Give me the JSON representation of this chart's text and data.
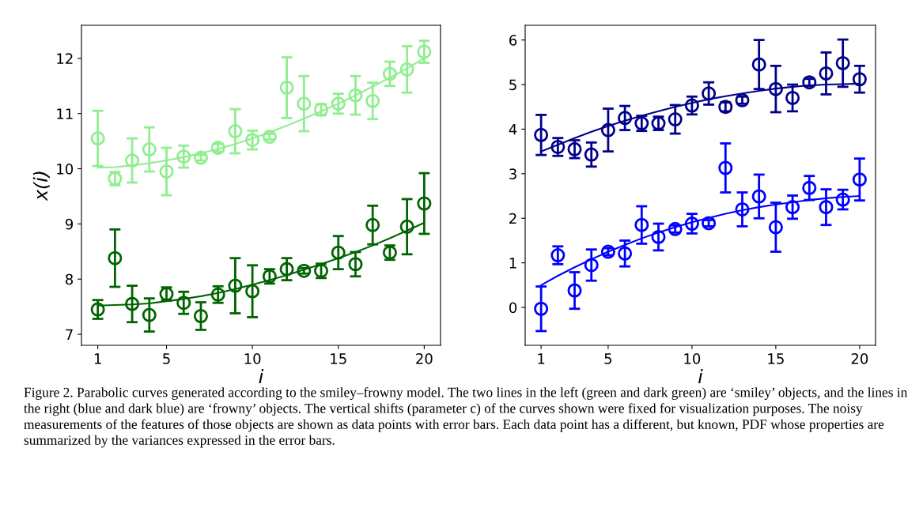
{
  "chart_data": [
    {
      "type": "scatter",
      "xlabel": "i",
      "ylabel": "x(i)",
      "xlim": [
        0.05,
        20.95
      ],
      "ylim": [
        6.8,
        12.6
      ],
      "xticks": [
        1,
        5,
        10,
        15,
        20
      ],
      "yticks": [
        7,
        8,
        9,
        10,
        11,
        12
      ],
      "grid": false,
      "marker": "circle",
      "x": [
        1,
        2,
        3,
        4,
        5,
        6,
        7,
        8,
        9,
        10,
        11,
        12,
        13,
        14,
        15,
        16,
        17,
        18,
        19,
        20
      ],
      "series": [
        {
          "color": "#90ee90",
          "values": [
            10.55,
            9.82,
            10.15,
            10.35,
            9.95,
            10.22,
            10.2,
            10.38,
            10.68,
            10.52,
            10.58,
            11.47,
            11.18,
            11.07,
            11.18,
            11.33,
            11.23,
            11.72,
            11.8,
            12.12
          ],
          "errors": [
            0.5,
            0.12,
            0.4,
            0.4,
            0.43,
            0.2,
            0.05,
            0.07,
            0.4,
            0.17,
            0.05,
            0.55,
            0.5,
            0.1,
            0.18,
            0.35,
            0.33,
            0.22,
            0.42,
            0.2
          ]
        },
        {
          "type": "line",
          "marker": "none",
          "color": "#90ee90",
          "values": [
            10.02,
            10.03,
            10.06,
            10.1,
            10.15,
            10.21,
            10.28,
            10.36,
            10.45,
            10.55,
            10.66,
            10.78,
            10.91,
            11.04,
            11.18,
            11.33,
            11.49,
            11.65,
            11.82,
            12.0
          ]
        },
        {
          "color": "#006400",
          "values": [
            7.45,
            8.38,
            7.55,
            7.35,
            7.73,
            7.57,
            7.33,
            7.72,
            7.88,
            7.78,
            8.05,
            8.18,
            8.15,
            8.15,
            8.48,
            8.27,
            8.98,
            8.48,
            8.95,
            9.37
          ],
          "errors": [
            0.17,
            0.52,
            0.33,
            0.3,
            0.12,
            0.2,
            0.25,
            0.15,
            0.5,
            0.47,
            0.13,
            0.2,
            0.05,
            0.13,
            0.3,
            0.22,
            0.35,
            0.13,
            0.5,
            0.55
          ]
        },
        {
          "type": "line",
          "marker": "none",
          "color": "#006400",
          "values": [
            7.52,
            7.53,
            7.54,
            7.56,
            7.6,
            7.64,
            7.69,
            7.75,
            7.82,
            7.9,
            7.98,
            8.07,
            8.17,
            8.27,
            8.38,
            8.49,
            8.61,
            8.74,
            8.88,
            9.02
          ]
        }
      ],
      "annotations": [
        "Figure 2. Parabolic curves generated according to the smiley–frowny model. The two lines in the left (green and dark green) are ‘smiley’ objects, and the lines in the right (blue and dark blue) are ‘frowny’ objects. The vertical shifts (parameter c) of the curves shown were fixed for visualization purposes. The noisy measurements of the features of those objects are shown as data points with error bars. Each data point has a different, but known, PDF whose properties are summarized by the variances expressed in the error bars."
      ]
    },
    {
      "type": "scatter",
      "xlabel": "i",
      "xlim": [
        0.05,
        20.95
      ],
      "ylim": [
        -0.85,
        6.33
      ],
      "xticks": [
        1,
        5,
        10,
        15,
        20
      ],
      "yticks": [
        0,
        1,
        2,
        3,
        4,
        5,
        6
      ],
      "grid": false,
      "marker": "circle",
      "x": [
        1,
        2,
        3,
        4,
        5,
        6,
        7,
        8,
        9,
        10,
        11,
        12,
        13,
        14,
        15,
        16,
        17,
        18,
        19,
        20
      ],
      "series": [
        {
          "color": "#00008b",
          "values": [
            3.87,
            3.6,
            3.55,
            3.43,
            3.98,
            4.25,
            4.13,
            4.13,
            4.22,
            4.53,
            4.8,
            4.5,
            4.65,
            5.45,
            4.9,
            4.7,
            5.05,
            5.25,
            5.48,
            5.12
          ],
          "errors": [
            0.45,
            0.2,
            0.2,
            0.27,
            0.48,
            0.27,
            0.17,
            0.15,
            0.32,
            0.2,
            0.25,
            0.1,
            0.08,
            0.55,
            0.52,
            0.3,
            0.08,
            0.47,
            0.53,
            0.3
          ]
        },
        {
          "type": "line",
          "marker": "none",
          "color": "#00008b",
          "values": [
            3.5,
            3.65,
            3.8,
            3.94,
            4.07,
            4.19,
            4.3,
            4.4,
            4.5,
            4.59,
            4.67,
            4.74,
            4.8,
            4.86,
            4.91,
            4.95,
            4.98,
            5.0,
            5.01,
            5.02
          ]
        },
        {
          "color": "#0000ff",
          "values": [
            -0.03,
            1.17,
            0.38,
            0.95,
            1.25,
            1.21,
            1.85,
            1.58,
            1.76,
            1.88,
            1.89,
            3.13,
            2.2,
            2.49,
            1.8,
            2.25,
            2.68,
            2.25,
            2.42,
            2.87
          ],
          "errors": [
            0.5,
            0.2,
            0.41,
            0.35,
            0.08,
            0.29,
            0.42,
            0.3,
            0.08,
            0.22,
            0.07,
            0.55,
            0.38,
            0.49,
            0.55,
            0.26,
            0.27,
            0.4,
            0.22,
            0.47
          ]
        },
        {
          "type": "line",
          "marker": "none",
          "color": "#0000ff",
          "values": [
            0.5,
            0.71,
            0.9,
            1.08,
            1.25,
            1.4,
            1.55,
            1.68,
            1.8,
            1.91,
            2.01,
            2.1,
            2.18,
            2.25,
            2.31,
            2.36,
            2.41,
            2.45,
            2.48,
            2.5
          ]
        }
      ]
    }
  ]
}
